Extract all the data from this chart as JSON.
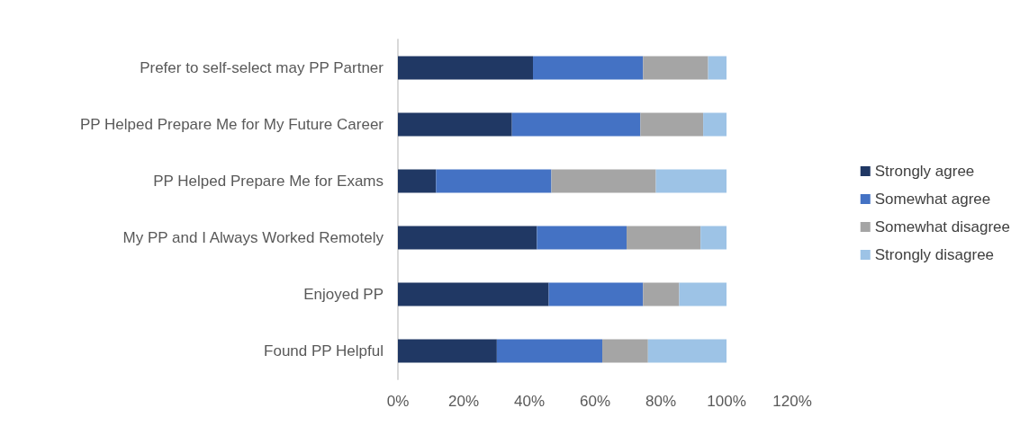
{
  "chart_data": {
    "type": "bar",
    "orientation": "horizontal",
    "stacked": true,
    "categories": [
      "Prefer to self-select may PP Partner",
      "PP Helped Prepare Me for My Future Career",
      "PP Helped Prepare Me for Exams",
      "My PP and I Always Worked Remotely",
      "Enjoyed PP",
      "Found PP Helpful"
    ],
    "series": [
      {
        "name": "Strongly agree",
        "color": "#203864",
        "values": [
          41.1,
          34.7,
          11.6,
          42.3,
          45.9,
          30.1
        ]
      },
      {
        "name": "Somewhat agree",
        "color": "#4472c4",
        "values": [
          33.5,
          39.1,
          35.1,
          27.3,
          28.7,
          32.1
        ]
      },
      {
        "name": "Somewhat disagree",
        "color": "#a5a5a5",
        "values": [
          19.8,
          19.1,
          31.8,
          22.5,
          11.0,
          13.9
        ]
      },
      {
        "name": "Strongly disagree",
        "color": "#9dc3e6",
        "values": [
          5.6,
          7.1,
          21.5,
          7.9,
          14.4,
          23.9
        ]
      }
    ],
    "xlim": [
      0,
      120
    ],
    "xticks": [
      {
        "value": 0,
        "label": "0%"
      },
      {
        "value": 20,
        "label": "20%"
      },
      {
        "value": 40,
        "label": "40%"
      },
      {
        "value": 60,
        "label": "60%"
      },
      {
        "value": 80,
        "label": "80%"
      },
      {
        "value": 100,
        "label": "100%"
      },
      {
        "value": 120,
        "label": "120%"
      }
    ],
    "grid": false,
    "legend": "right"
  }
}
